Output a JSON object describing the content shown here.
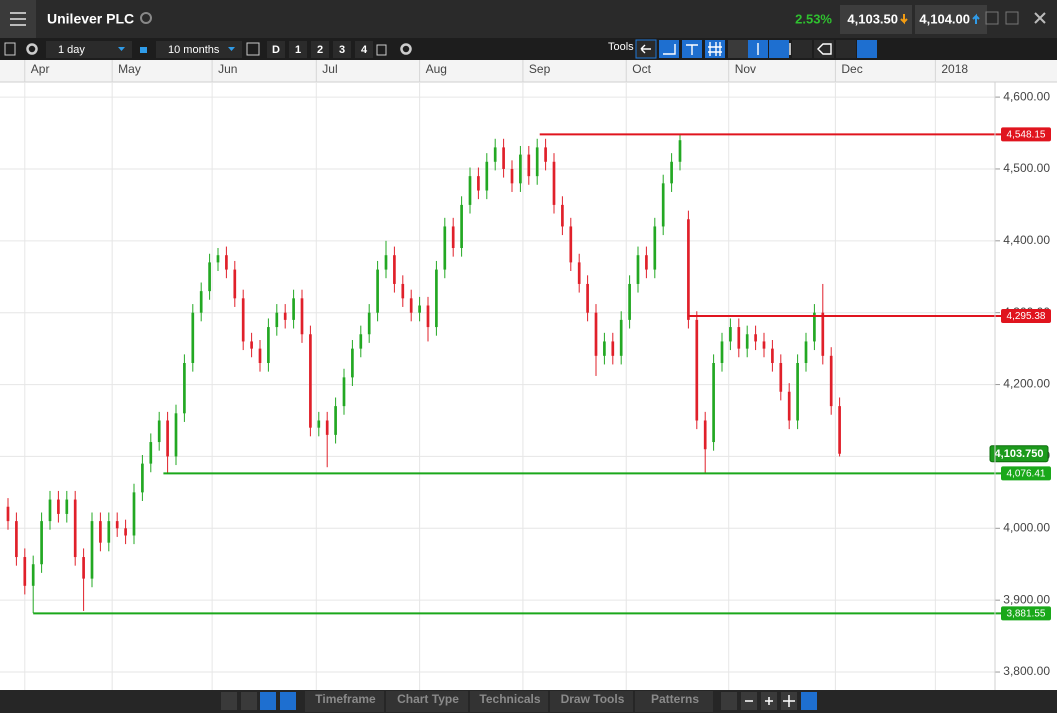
{
  "ui": {
    "title": "Unilever PLC",
    "change": "2.53%",
    "sell": "4,103.50",
    "buy": "4,104.00",
    "interval": "1 day",
    "range": "10 months",
    "quick": [
      "D",
      "1",
      "2",
      "3",
      "4"
    ],
    "tools": "Tools",
    "bottom": [
      "Timeframe",
      "Chart Type",
      "Technicals",
      "Draw Tools",
      "Patterns"
    ]
  },
  "chart_data": {
    "type": "candlestick",
    "up_color": "#23a823",
    "down_color": "#e0202a",
    "grid": true,
    "x": [
      0,
      1,
      2,
      3,
      4,
      5,
      6,
      7,
      8,
      9,
      10,
      11,
      12,
      13,
      14,
      15,
      16,
      17,
      18,
      19,
      20,
      21,
      22,
      23,
      24,
      25,
      26,
      27,
      28,
      29,
      30,
      31,
      32,
      33,
      34,
      35,
      36,
      37,
      38,
      39,
      40,
      41,
      42,
      43,
      44,
      45,
      46,
      47,
      48,
      49,
      50,
      51,
      52,
      53,
      54,
      55,
      56,
      57,
      58,
      59,
      60,
      61,
      62,
      63,
      64,
      65,
      66,
      67,
      68,
      69,
      70,
      71,
      72,
      73,
      74,
      75,
      76,
      77,
      78,
      79,
      80,
      81,
      82,
      83,
      84,
      85,
      86,
      87,
      88,
      89,
      90,
      91,
      92,
      93,
      94,
      95,
      96,
      97,
      98,
      99
    ],
    "open": [
      4030,
      4010,
      3960,
      3920,
      3950,
      4010,
      4040,
      4020,
      4040,
      3960,
      3930,
      4010,
      3980,
      4010,
      4000,
      3990,
      4050,
      4090,
      4120,
      4150,
      4100,
      4160,
      4230,
      4300,
      4330,
      4370,
      4380,
      4360,
      4320,
      4260,
      4250,
      4230,
      4280,
      4300,
      4290,
      4320,
      4270,
      4140,
      4150,
      4130,
      4170,
      4210,
      4250,
      4270,
      4300,
      4360,
      4380,
      4340,
      4320,
      4300,
      4310,
      4280,
      4360,
      4420,
      4390,
      4450,
      4490,
      4470,
      4510,
      4530,
      4500,
      4480,
      4520,
      4490,
      4530,
      4510,
      4450,
      4420,
      4370,
      4340,
      4300,
      4240,
      4260,
      4240,
      4290,
      4340,
      4380,
      4360,
      4420,
      4480,
      4510,
      4430,
      4290,
      4150,
      4120,
      4230,
      4260,
      4280,
      4250,
      4270,
      4260,
      4250,
      4230,
      4190,
      4150,
      4230,
      4260,
      4300,
      4240,
      4170
    ],
    "high": [
      4042,
      4022,
      3972,
      3962,
      4022,
      4052,
      4052,
      4052,
      4052,
      3972,
      4022,
      4022,
      4022,
      4022,
      4012,
      4062,
      4102,
      4132,
      4162,
      4162,
      4172,
      4242,
      4312,
      4342,
      4382,
      4390,
      4392,
      4372,
      4332,
      4272,
      4262,
      4292,
      4312,
      4312,
      4332,
      4332,
      4282,
      4162,
      4162,
      4182,
      4222,
      4262,
      4282,
      4312,
      4372,
      4400,
      4392,
      4352,
      4332,
      4322,
      4322,
      4372,
      4432,
      4432,
      4462,
      4502,
      4502,
      4522,
      4542,
      4542,
      4512,
      4532,
      4532,
      4542,
      4542,
      4522,
      4462,
      4432,
      4382,
      4352,
      4312,
      4272,
      4272,
      4302,
      4352,
      4392,
      4392,
      4432,
      4492,
      4522,
      4548,
      4442,
      4302,
      4162,
      4242,
      4272,
      4292,
      4292,
      4282,
      4282,
      4272,
      4262,
      4242,
      4202,
      4242,
      4272,
      4312,
      4340,
      4252,
      4182
    ],
    "low": [
      3998,
      3948,
      3908,
      3882,
      3938,
      3998,
      4008,
      4008,
      3948,
      3885,
      3918,
      3968,
      3968,
      3988,
      3978,
      3978,
      4038,
      4078,
      4108,
      4076,
      4088,
      4148,
      4218,
      4288,
      4318,
      4358,
      4348,
      4308,
      4248,
      4238,
      4218,
      4218,
      4268,
      4278,
      4278,
      4258,
      4128,
      4128,
      4085,
      4118,
      4158,
      4198,
      4238,
      4258,
      4288,
      4348,
      4328,
      4308,
      4288,
      4288,
      4260,
      4268,
      4348,
      4378,
      4378,
      4438,
      4458,
      4458,
      4498,
      4488,
      4468,
      4468,
      4478,
      4478,
      4498,
      4438,
      4408,
      4358,
      4328,
      4288,
      4212,
      4228,
      4228,
      4228,
      4278,
      4328,
      4348,
      4348,
      4408,
      4468,
      4498,
      4278,
      4138,
      4076,
      4108,
      4218,
      4248,
      4238,
      4238,
      4248,
      4238,
      4218,
      4178,
      4138,
      4138,
      4218,
      4248,
      4228,
      4158,
      4100
    ],
    "close": [
      4010,
      3960,
      3920,
      3950,
      4010,
      4040,
      4020,
      4040,
      3960,
      3930,
      4010,
      3980,
      4010,
      4000,
      3990,
      4050,
      4090,
      4120,
      4150,
      4100,
      4160,
      4230,
      4300,
      4330,
      4370,
      4380,
      4360,
      4320,
      4260,
      4250,
      4230,
      4280,
      4300,
      4290,
      4320,
      4270,
      4140,
      4150,
      4130,
      4170,
      4210,
      4250,
      4270,
      4300,
      4360,
      4380,
      4340,
      4320,
      4300,
      4310,
      4280,
      4360,
      4420,
      4390,
      4450,
      4490,
      4470,
      4510,
      4530,
      4500,
      4480,
      4520,
      4490,
      4530,
      4510,
      4450,
      4420,
      4370,
      4340,
      4300,
      4240,
      4260,
      4240,
      4290,
      4340,
      4380,
      4360,
      4420,
      4480,
      4510,
      4540,
      4290,
      4150,
      4110,
      4230,
      4260,
      4280,
      4250,
      4270,
      4260,
      4250,
      4230,
      4190,
      4150,
      4230,
      4260,
      4300,
      4240,
      4170,
      4103.75
    ],
    "xlim": [
      -0.952,
      117.5
    ],
    "xticks": [
      {
        "value": 2,
        "label": "Apr"
      },
      {
        "value": 12.4,
        "label": "May"
      },
      {
        "value": 24.3,
        "label": "Jun"
      },
      {
        "value": 36.7,
        "label": "Jul"
      },
      {
        "value": 49,
        "label": "Aug"
      },
      {
        "value": 61.3,
        "label": "Sep"
      },
      {
        "value": 73.6,
        "label": "Oct"
      },
      {
        "value": 85.8,
        "label": "Nov"
      },
      {
        "value": 98.5,
        "label": "Dec"
      },
      {
        "value": 110.4,
        "label": "2018"
      }
    ],
    "ylim": [
      3775,
      4621
    ],
    "yticks": [
      {
        "value": 3800,
        "label": "3,800.00"
      },
      {
        "value": 3900,
        "label": "3,900.00"
      },
      {
        "value": 4000,
        "label": "4,000.00"
      },
      {
        "value": 4100,
        "label": "4,100.00"
      },
      {
        "value": 4200,
        "label": "4,200.00"
      },
      {
        "value": 4300,
        "label": "4,300.00"
      },
      {
        "value": 4400,
        "label": "4,400.00"
      },
      {
        "value": 4500,
        "label": "4,500.00"
      },
      {
        "value": 4600,
        "label": "4,600.00"
      }
    ],
    "levels": [
      {
        "value": 4548.15,
        "label": "4,548.15",
        "color": "#e0141e",
        "x0": 63.3
      },
      {
        "value": 4295.38,
        "label": "4,295.38",
        "color": "#e0141e",
        "x0": 81
      },
      {
        "value": 4076.41,
        "label": "4,076.41",
        "color": "#1aa81a",
        "x0": 18.5
      },
      {
        "value": 3881.55,
        "label": "3,881.55",
        "color": "#1aa81a",
        "x0": 3
      }
    ],
    "last": {
      "value": 4103.75,
      "label": "4,103.750"
    }
  }
}
